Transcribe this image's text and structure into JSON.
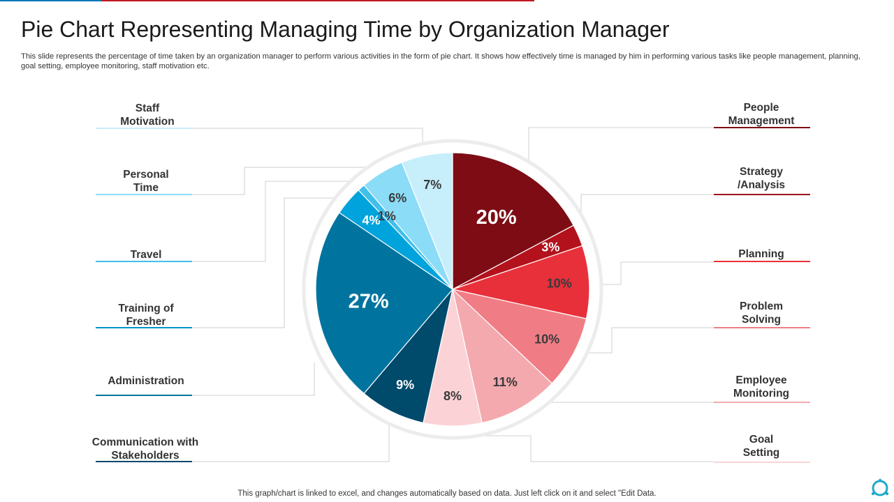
{
  "title": "Pie Chart Representing Managing Time by Organization Manager",
  "subtitle": "This slide represents the percentage of time taken by an organization manager to perform various activities in the form of pie chart. It shows how effectively time is managed by him in performing various tasks like people management, planning, goal setting, employee monitoring, staff motivation etc.",
  "footer": "This graph/chart is linked to excel, and changes automatically based on data. Just left click on it and select \"Edit Data.",
  "chart_data": {
    "type": "pie",
    "title": "",
    "start": "top",
    "direction": "clockwise",
    "slices": [
      {
        "label": "People Management",
        "value": 20,
        "display": "20%",
        "color": "#7d0c14"
      },
      {
        "label": "Strategy /Analysis",
        "value": 3,
        "display": "3%",
        "color": "#b3121c"
      },
      {
        "label": "Planning",
        "value": 10,
        "display": "10%",
        "color": "#e8303b"
      },
      {
        "label": "Problem Solving",
        "value": 10,
        "display": "10%",
        "color": "#f07d85"
      },
      {
        "label": "Employee Monitoring",
        "value": 11,
        "display": "11%",
        "color": "#f4a9ae"
      },
      {
        "label": "Goal Setting",
        "value": 8,
        "display": "8%",
        "color": "#fbd3d6"
      },
      {
        "label": "Communication with Stakeholders",
        "value": 9,
        "display": "9%",
        "color": "#004a6c"
      },
      {
        "label": "Administration",
        "value": 27,
        "display": "27%",
        "color": "#00749f"
      },
      {
        "label": "Training of Fresher",
        "value": 4,
        "display": "4%",
        "color": "#00a3dc"
      },
      {
        "label": "Travel",
        "value": 1,
        "display": "1%",
        "color": "#40bfe9"
      },
      {
        "label": "Personal Time",
        "value": 6,
        "display": "6%",
        "color": "#8bdcf7"
      },
      {
        "label": "Staff Motivation",
        "value": 7,
        "display": "7%",
        "color": "#c7eefb"
      }
    ]
  },
  "labels": {
    "people_management": "People\nManagement",
    "strategy_analysis": "Strategy\n/Analysis",
    "planning": "Planning",
    "problem_solving": "Problem\nSolving",
    "employee_monitoring": "Employee\nMonitoring",
    "goal_setting": "Goal\nSetting",
    "staff_motivation": "Staff\nMotivation",
    "personal_time": "Personal\nTime",
    "travel": "Travel",
    "training_fresher": "Training of\nFresher",
    "administration": "Administration",
    "communication": "Communication with\nStakeholders"
  },
  "colors": {
    "accent_red": "#c0181f",
    "accent_blue": "#0077b6",
    "ring": "#ececec"
  }
}
